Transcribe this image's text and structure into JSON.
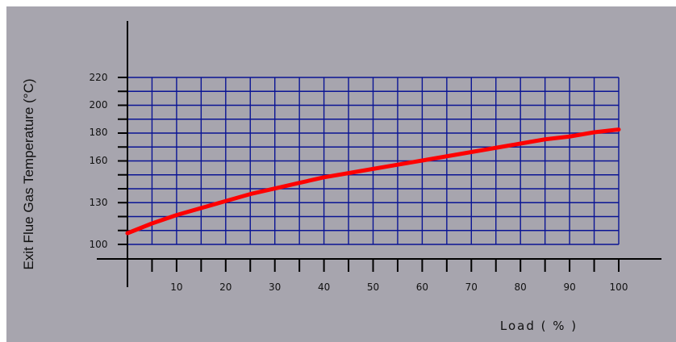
{
  "chart_data": {
    "type": "line",
    "title": "",
    "xlabel": "Load ( % )",
    "ylabel": "Exit Flue Gas Temperature (°C)",
    "xlim": [
      0,
      100
    ],
    "x_ticks": [
      10,
      20,
      30,
      40,
      50,
      60,
      70,
      80,
      90,
      100
    ],
    "y_tick_labels": [
      "100",
      "130",
      "160",
      "180",
      "200",
      "220"
    ],
    "grid": true,
    "colors": {
      "background": "#a7a5ae",
      "grid": "#0a1494",
      "line": "#ff0000",
      "axis": "#000000"
    },
    "series": [
      {
        "x": [
          0,
          5,
          10,
          15,
          20,
          25,
          30,
          35,
          40,
          45,
          50,
          55,
          60,
          65,
          70,
          75,
          80,
          85,
          90,
          95,
          100
        ],
        "y": [
          108,
          115,
          121,
          126,
          131,
          136,
          140,
          144,
          148,
          151,
          154,
          157,
          160,
          163,
          166,
          169,
          172,
          175,
          177,
          180,
          182
        ]
      }
    ]
  }
}
